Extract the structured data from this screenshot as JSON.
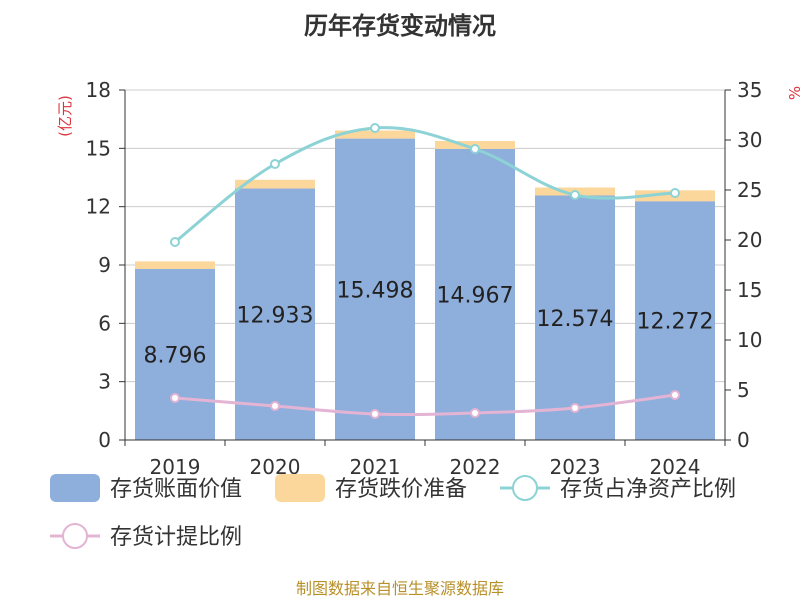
{
  "chart_data": {
    "type": "bar",
    "title": "历年存货变动情况",
    "categories": [
      "2019",
      "2020",
      "2021",
      "2022",
      "2023",
      "2024"
    ],
    "left_axis": {
      "unit": "(亿元)",
      "ylim": [
        0,
        18
      ],
      "ticks": [
        "0",
        "3",
        "6",
        "9",
        "12",
        "15",
        "18"
      ]
    },
    "right_axis": {
      "unit": "%",
      "ylim": [
        0,
        35
      ],
      "ticks": [
        "0",
        "5",
        "10",
        "15",
        "20",
        "25",
        "30",
        "35"
      ]
    },
    "series": [
      {
        "name": "存货账面价值",
        "kind": "bar",
        "axis": "left",
        "color": "#8eaedb",
        "values": [
          8.796,
          12.933,
          15.498,
          14.967,
          12.574,
          12.272
        ],
        "labels": [
          "8.796",
          "12.933",
          "15.498",
          "14.967",
          "12.574",
          "12.272"
        ]
      },
      {
        "name": "存货跌价准备",
        "kind": "bar-stacked",
        "axis": "left",
        "color": "#fcd79b",
        "values": [
          0.39,
          0.45,
          0.42,
          0.41,
          0.41,
          0.57
        ]
      },
      {
        "name": "存货占净资产比例",
        "kind": "line",
        "axis": "right",
        "color": "#8dd3d6",
        "values": [
          19.8,
          27.6,
          31.2,
          29.1,
          24.5,
          24.7
        ]
      },
      {
        "name": "存货计提比例",
        "kind": "line",
        "axis": "right",
        "color": "#e3b4d4",
        "values": [
          4.2,
          3.4,
          2.6,
          2.7,
          3.2,
          4.5
        ]
      }
    ],
    "grid": true,
    "legend_position": "bottom"
  },
  "footer": "制图数据来自恒生聚源数据库"
}
